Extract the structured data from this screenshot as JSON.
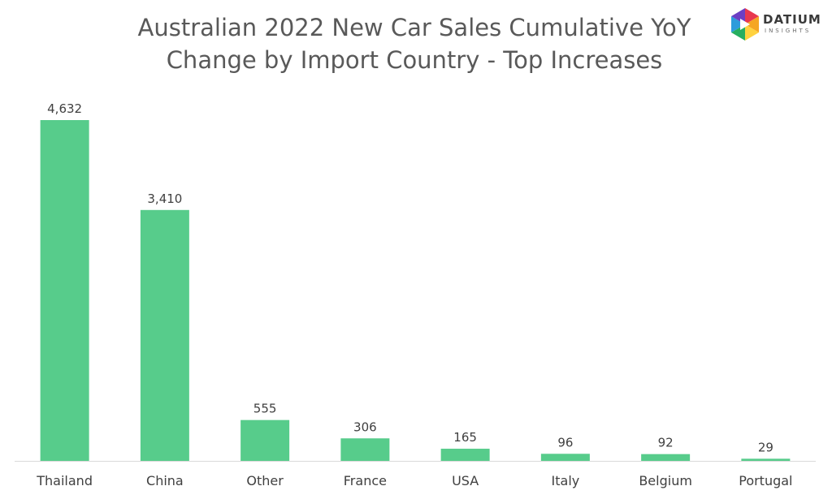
{
  "title_lines": [
    "Australian 2022 New Car Sales Cumulative YoY",
    "Change by Import Country - Top Increases"
  ],
  "logo": {
    "wordmark": "DATIUM",
    "subtext": "INSIGHTS"
  },
  "colors": {
    "bar": "#57cc8b",
    "axis": "#d9d9d9",
    "text": "#404040",
    "title": "#595959"
  },
  "chart_data": {
    "type": "bar",
    "title": "Australian 2022 New Car Sales Cumulative YoY Change by Import Country - Top Increases",
    "categories": [
      "Thailand",
      "China",
      "Other",
      "France",
      "USA",
      "Italy",
      "Belgium",
      "Portugal"
    ],
    "values": [
      4632,
      3410,
      555,
      306,
      165,
      96,
      92,
      29
    ],
    "data_labels": [
      "4,632",
      "3,410",
      "555",
      "306",
      "165",
      "96",
      "92",
      "29"
    ],
    "xlabel": "",
    "ylabel": "",
    "ylim": [
      0,
      4632
    ],
    "grid": false,
    "legend": "none"
  }
}
